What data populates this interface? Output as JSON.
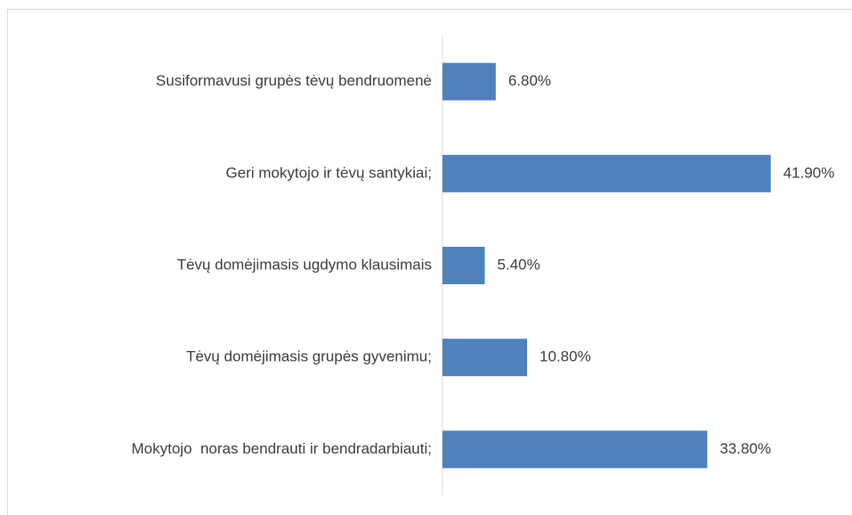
{
  "chart_data": {
    "type": "bar",
    "orientation": "horizontal",
    "categories": [
      "Susiformavusi grupės tėvų bendruomenė",
      "Geri mokytojo ir tėvų santykiai;",
      "Tėvų domėjimasis ugdymo klausimais",
      "Tėvų domėjimasis grupės gyvenimu;",
      "Mokytojo  noras bendrauti ir bendradarbiauti;"
    ],
    "values": [
      6.8,
      41.9,
      5.4,
      10.8,
      33.8
    ],
    "value_labels": [
      "6.80%",
      "41.90%",
      "5.40%",
      "10.80%",
      "33.80%"
    ],
    "color": "#4f81bd"
  }
}
